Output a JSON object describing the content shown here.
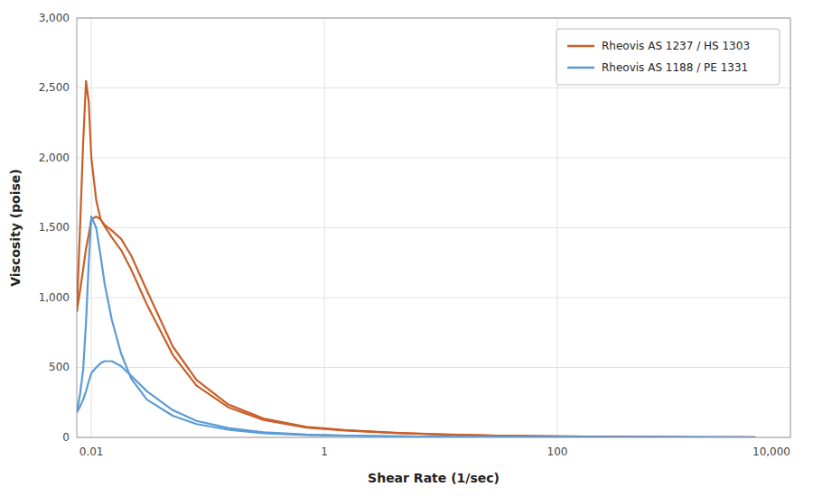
{
  "chart_data": {
    "type": "line",
    "xlabel": "Shear Rate (1/sec)",
    "ylabel": "Viscosity (poise)",
    "log": "x",
    "grid": true,
    "legend": "upper right",
    "xlim": [
      0.0075,
      10000
    ],
    "ylim": [
      0,
      3000
    ],
    "xticks": [
      0.01,
      1,
      100,
      {
        "value": 10000,
        "label": "10,000"
      }
    ],
    "yticks": [
      0,
      500,
      {
        "value": 1000,
        "label": "1,000"
      },
      {
        "value": 1500,
        "label": "1,500"
      },
      {
        "value": 2000,
        "label": "2,000"
      },
      {
        "value": 2500,
        "label": "2,500"
      },
      {
        "value": 3000,
        "label": "3,000"
      }
    ],
    "x": [
      0.0075,
      0.008,
      0.0085,
      0.009,
      0.0095,
      0.01,
      0.011,
      0.012,
      0.013,
      0.015,
      0.018,
      0.022,
      0.03,
      0.05,
      0.08,
      0.15,
      0.3,
      0.7,
      1.5,
      4,
      10,
      30,
      100,
      300,
      1000,
      5000
    ],
    "series": [
      {
        "name": "Rheovis AS 1237 / HS 1303",
        "color": "#C8602A",
        "values": [
          900,
          1500,
          2100,
          2550,
          2400,
          2000,
          1700,
          1560,
          1520,
          1480,
          1420,
          1300,
          1050,
          650,
          410,
          235,
          135,
          75,
          52,
          33,
          22,
          13,
          8,
          4,
          2,
          0.5
        ]
      },
      {
        "color": "#C8602A",
        "values": [
          900,
          1050,
          1200,
          1350,
          1450,
          1560,
          1580,
          1560,
          1510,
          1430,
          1340,
          1200,
          950,
          590,
          370,
          215,
          125,
          70,
          49,
          31,
          21,
          12,
          8,
          4,
          2,
          0.5
        ]
      },
      {
        "name": "Rheovis AS 1188 / PE 1331",
        "color": "#5B9BD5",
        "values": [
          175,
          310,
          480,
          820,
          1250,
          1580,
          1500,
          1300,
          1100,
          840,
          600,
          420,
          270,
          155,
          95,
          55,
          30,
          17,
          12,
          8,
          5,
          3,
          2,
          0.8,
          0.4,
          0.1
        ]
      },
      {
        "color": "#5B9BD5",
        "values": [
          180,
          220,
          270,
          330,
          400,
          460,
          500,
          530,
          545,
          545,
          510,
          440,
          330,
          195,
          118,
          67,
          36,
          20,
          13,
          8,
          5,
          3,
          2,
          0.8,
          0.4,
          0.1
        ]
      }
    ]
  }
}
